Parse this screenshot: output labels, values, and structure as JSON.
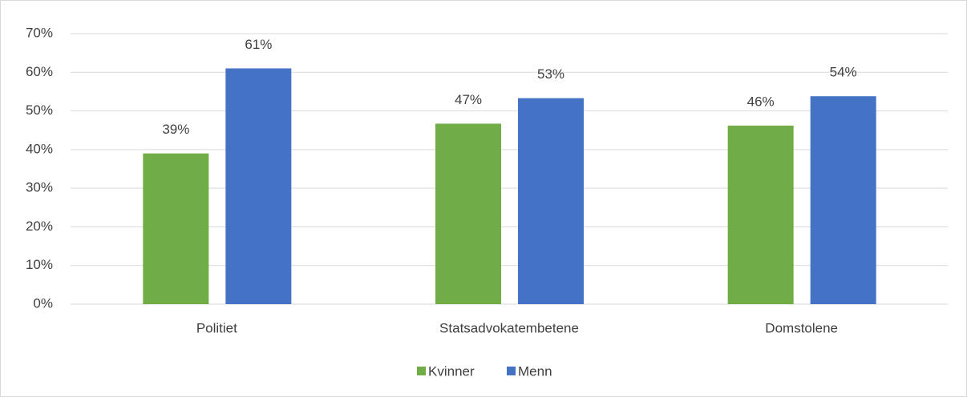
{
  "chart_data": {
    "type": "bar",
    "categories": [
      "Politiet",
      "Statsadvokatembetene",
      "Domstolene"
    ],
    "series": [
      {
        "name": "Kvinner",
        "color": "#70ad47",
        "values": [
          39,
          46.7,
          46.2
        ],
        "value_labels": [
          "39%",
          "47%",
          "46%"
        ]
      },
      {
        "name": "Menn",
        "color": "#4472c4",
        "values": [
          61,
          53.3,
          53.8
        ],
        "value_labels": [
          "61%",
          "53%",
          "54%"
        ]
      }
    ],
    "ylim": [
      0,
      70
    ],
    "yticks": [
      {
        "value": 0,
        "label": "0%"
      },
      {
        "value": 10,
        "label": "10%"
      },
      {
        "value": 20,
        "label": "20%"
      },
      {
        "value": 30,
        "label": "30%"
      },
      {
        "value": 40,
        "label": "40%"
      },
      {
        "value": 50,
        "label": "50%"
      },
      {
        "value": 60,
        "label": "60%"
      },
      {
        "value": 70,
        "label": "70%"
      }
    ],
    "grid": true,
    "legend": "bottom"
  }
}
